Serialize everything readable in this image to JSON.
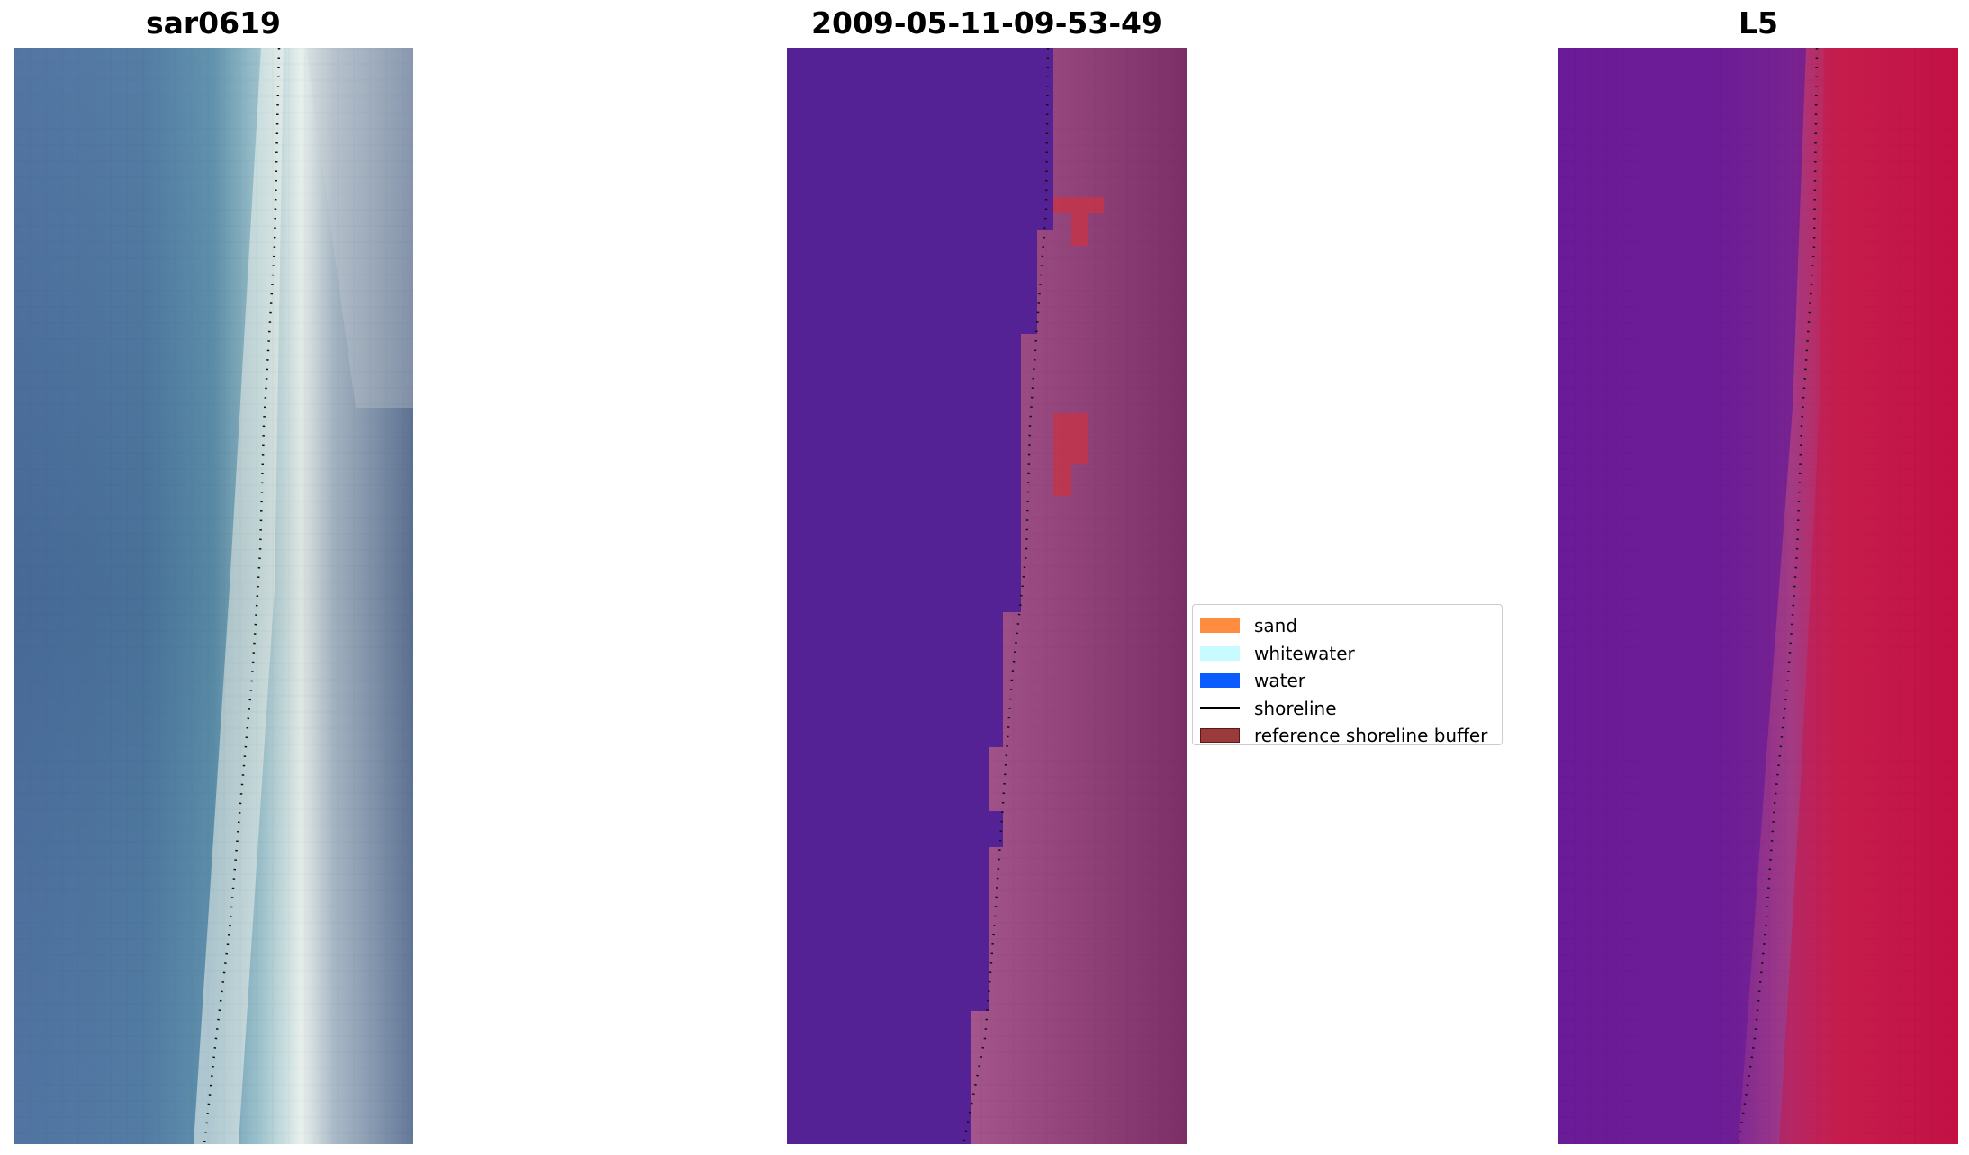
{
  "panels": [
    {
      "title": "sar0619",
      "image": "rgb-satellite-image"
    },
    {
      "title": "2009-05-11-09-53-49",
      "image": "classified-image"
    },
    {
      "title": "L5",
      "image": "mndwi-image"
    }
  ],
  "legend": {
    "items": [
      {
        "label": "sand",
        "color": "#ff8c3f"
      },
      {
        "label": "whitewater",
        "color": "#c8fbff"
      },
      {
        "label": "water",
        "color": "#0a5cff"
      },
      {
        "label": "shoreline",
        "color": "#000000"
      },
      {
        "label": "reference shoreline buffer",
        "color": "#9a3a3a"
      }
    ]
  },
  "colors": {
    "deep-water-rgb": "#4a6fa0",
    "whitewater-rgb": "#eef3ee",
    "classified-water": "#552296",
    "classified-sand": "#b65f98",
    "reference-buffer": "#c0354c",
    "mndwi-low": "#6c1b98",
    "mndwi-high": "#c1063f"
  }
}
